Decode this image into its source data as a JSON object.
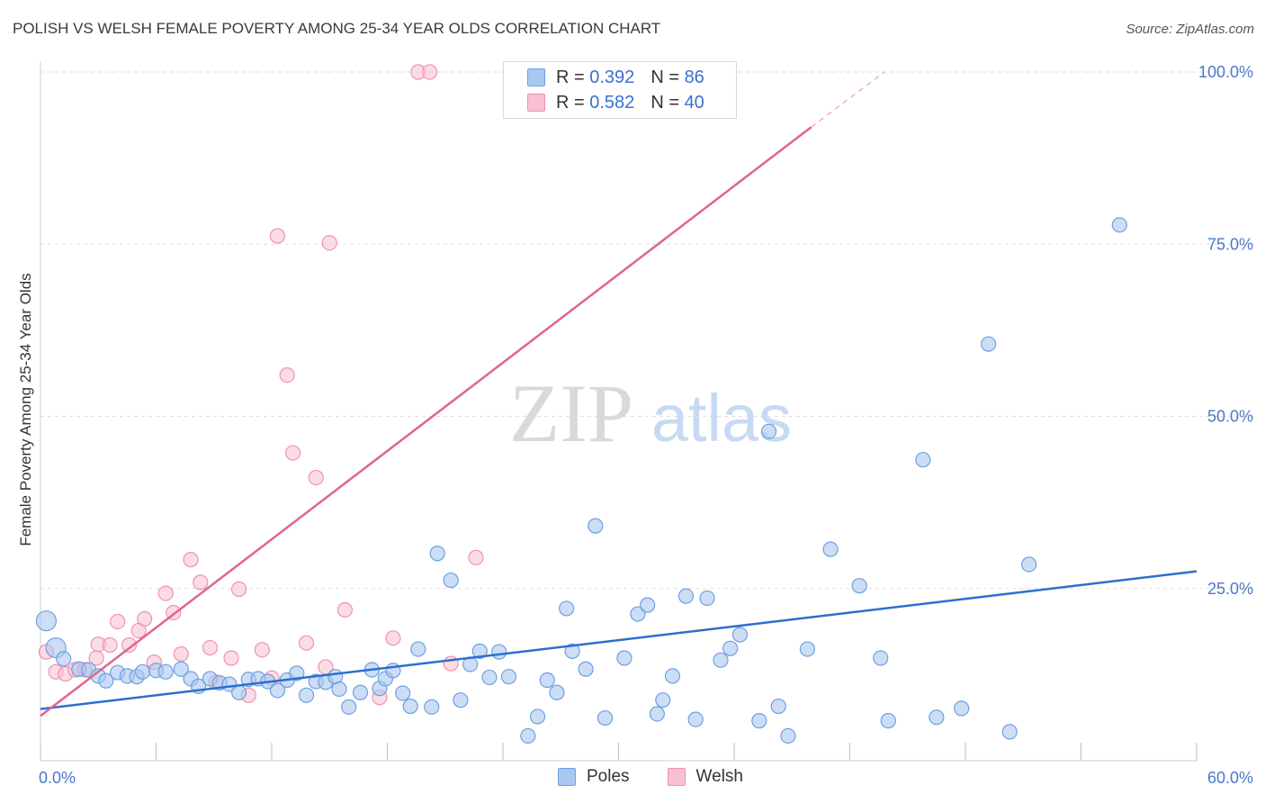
{
  "title": "POLISH VS WELSH FEMALE POVERTY AMONG 25-34 YEAR OLDS CORRELATION CHART",
  "source": "Source: ZipAtlas.com",
  "watermark": {
    "zip": "ZIP",
    "atlas": "atlas"
  },
  "legend": {
    "r_label": "R =",
    "n_label": "N =",
    "poles": {
      "r": "0.392",
      "n": "86"
    },
    "welsh": {
      "r": "0.582",
      "n": "40"
    }
  },
  "bottom_legend": {
    "poles": "Poles",
    "welsh": "Welsh"
  },
  "colors": {
    "poles_fill": "#a8c8f0",
    "poles_stroke": "#6f9fe0",
    "poles_line": "#2b6fd0",
    "welsh_fill": "#f8c0d0",
    "welsh_stroke": "#ee93ad",
    "welsh_line": "#e0648e",
    "tick_text": "#4a78c8",
    "grid": "#dedede"
  },
  "chart_data": {
    "type": "scatter",
    "title": "POLISH VS WELSH FEMALE POVERTY AMONG 25-34 YEAR OLDS CORRELATION CHART",
    "xlabel": "",
    "ylabel": "Female Poverty Among 25-34 Year Olds",
    "xlim": [
      0,
      60
    ],
    "ylim": [
      0,
      100
    ],
    "x_tick_labels": [
      "0.0%",
      "60.0%"
    ],
    "y_tick_labels": [
      "25.0%",
      "50.0%",
      "75.0%",
      "100.0%"
    ],
    "y_ticks": [
      25,
      50,
      75,
      100
    ],
    "grid": true,
    "legend_position": "top-center",
    "series": [
      {
        "name": "Poles",
        "r": 0.392,
        "n": 86,
        "trend": {
          "x": [
            0,
            60
          ],
          "y": [
            7.5,
            27.5
          ]
        },
        "points": [
          [
            0.3,
            20.3
          ],
          [
            0.8,
            16.4
          ],
          [
            1.2,
            14.8
          ],
          [
            2,
            13.3
          ],
          [
            2.5,
            13.2
          ],
          [
            3,
            12.3
          ],
          [
            3.4,
            11.6
          ],
          [
            4,
            12.8
          ],
          [
            4.5,
            12.3
          ],
          [
            5,
            12.2
          ],
          [
            5.3,
            12.9
          ],
          [
            6,
            13.1
          ],
          [
            6.5,
            12.9
          ],
          [
            7.3,
            13.3
          ],
          [
            7.8,
            11.9
          ],
          [
            8.2,
            10.8
          ],
          [
            8.8,
            11.9
          ],
          [
            9.3,
            11.3
          ],
          [
            9.8,
            11.1
          ],
          [
            10.3,
            9.9
          ],
          [
            10.8,
            11.8
          ],
          [
            11.3,
            11.9
          ],
          [
            11.8,
            11.5
          ],
          [
            12.3,
            10.2
          ],
          [
            12.8,
            11.7
          ],
          [
            13.3,
            12.7
          ],
          [
            13.8,
            9.5
          ],
          [
            14.3,
            11.5
          ],
          [
            14.8,
            11.4
          ],
          [
            15.3,
            12.2
          ],
          [
            15.5,
            10.4
          ],
          [
            16,
            7.8
          ],
          [
            16.6,
            9.9
          ],
          [
            17.2,
            13.2
          ],
          [
            17.6,
            10.5
          ],
          [
            17.9,
            11.9
          ],
          [
            18.3,
            13.1
          ],
          [
            18.8,
            9.8
          ],
          [
            19.2,
            7.9
          ],
          [
            19.6,
            16.2
          ],
          [
            20.3,
            7.8
          ],
          [
            20.6,
            30.1
          ],
          [
            21.3,
            26.2
          ],
          [
            21.8,
            8.8
          ],
          [
            22.3,
            14
          ],
          [
            22.8,
            15.9
          ],
          [
            23.3,
            12.1
          ],
          [
            23.8,
            15.8
          ],
          [
            24.3,
            12.2
          ],
          [
            25.3,
            3.6
          ],
          [
            25.8,
            6.4
          ],
          [
            26.3,
            11.7
          ],
          [
            26.8,
            9.9
          ],
          [
            27.3,
            22.1
          ],
          [
            27.6,
            15.9
          ],
          [
            28.3,
            13.3
          ],
          [
            28.8,
            34.1
          ],
          [
            29.3,
            6.2
          ],
          [
            30.3,
            14.9
          ],
          [
            31,
            21.3
          ],
          [
            31.5,
            22.6
          ],
          [
            32,
            6.8
          ],
          [
            32.3,
            8.8
          ],
          [
            32.8,
            12.3
          ],
          [
            33.5,
            23.9
          ],
          [
            34,
            6
          ],
          [
            34.6,
            23.6
          ],
          [
            35.3,
            14.6
          ],
          [
            35.8,
            16.3
          ],
          [
            36.3,
            18.3
          ],
          [
            37.3,
            5.8
          ],
          [
            37.8,
            47.8
          ],
          [
            38.3,
            7.9
          ],
          [
            38.8,
            3.6
          ],
          [
            39.8,
            16.2
          ],
          [
            41,
            30.7
          ],
          [
            42.5,
            25.4
          ],
          [
            43.6,
            14.9
          ],
          [
            44,
            5.8
          ],
          [
            45.8,
            43.7
          ],
          [
            46.5,
            6.3
          ],
          [
            47.8,
            7.6
          ],
          [
            49.2,
            60.5
          ],
          [
            50.3,
            4.2
          ],
          [
            51.3,
            28.5
          ],
          [
            56,
            77.8
          ]
        ]
      },
      {
        "name": "Welsh",
        "r": 0.582,
        "n": 40,
        "trend": {
          "x": [
            0,
            40
          ],
          "y": [
            6.5,
            92
          ]
        },
        "trend_dashed": {
          "x": [
            40,
            43.8
          ],
          "y": [
            92,
            100
          ]
        },
        "points": [
          [
            0.3,
            15.8
          ],
          [
            0.8,
            12.9
          ],
          [
            1.3,
            12.6
          ],
          [
            1.8,
            13.2
          ],
          [
            2.3,
            13.2
          ],
          [
            2.9,
            14.9
          ],
          [
            3,
            16.9
          ],
          [
            3.6,
            16.8
          ],
          [
            4,
            20.2
          ],
          [
            4.6,
            16.8
          ],
          [
            5.1,
            18.9
          ],
          [
            5.4,
            20.6
          ],
          [
            5.9,
            14.3
          ],
          [
            6.5,
            24.3
          ],
          [
            6.9,
            21.5
          ],
          [
            7.3,
            15.5
          ],
          [
            7.8,
            29.2
          ],
          [
            8.3,
            25.9
          ],
          [
            8.8,
            16.4
          ],
          [
            9.1,
            11.4
          ],
          [
            9.9,
            14.9
          ],
          [
            10.3,
            24.9
          ],
          [
            10.8,
            9.5
          ],
          [
            11.5,
            16.1
          ],
          [
            12,
            12
          ],
          [
            12.3,
            76.2
          ],
          [
            12.8,
            56
          ],
          [
            13.1,
            44.7
          ],
          [
            13.8,
            17.1
          ],
          [
            14.3,
            41.1
          ],
          [
            14.8,
            13.6
          ],
          [
            15,
            75.2
          ],
          [
            15.8,
            21.9
          ],
          [
            17.6,
            9.2
          ],
          [
            18.3,
            17.8
          ],
          [
            19.6,
            100
          ],
          [
            20.2,
            100
          ],
          [
            21.3,
            14.1
          ],
          [
            22.6,
            29.5
          ],
          [
            31.3,
            100
          ]
        ]
      }
    ]
  }
}
